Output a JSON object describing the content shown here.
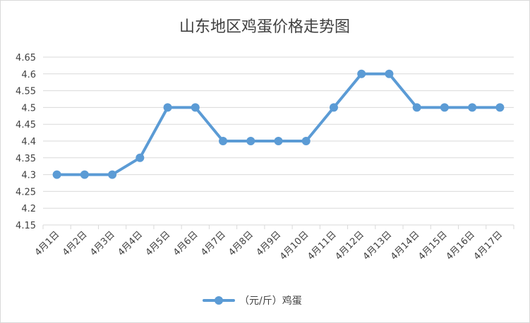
{
  "chart_data": {
    "type": "line",
    "title": "山东地区鸡蛋价格走势图",
    "xlabel": "",
    "ylabel": "",
    "categories": [
      "4月1日",
      "4月2日",
      "4月3日",
      "4月4日",
      "4月5日",
      "4月6日",
      "4月7日",
      "4月8日",
      "4月9日",
      "4月10日",
      "4月11日",
      "4月12日",
      "4月13日",
      "4月14日",
      "4月15日",
      "4月16日",
      "4月17日"
    ],
    "series": [
      {
        "name": "（元/斤）鸡蛋",
        "values": [
          4.3,
          4.3,
          4.3,
          4.35,
          4.5,
          4.5,
          4.4,
          4.4,
          4.4,
          4.4,
          4.5,
          4.6,
          4.6,
          4.5,
          4.5,
          4.5,
          4.5
        ]
      }
    ],
    "yticks": [
      "4.15",
      "4.2",
      "4.25",
      "4.3",
      "4.35",
      "4.4",
      "4.45",
      "4.5",
      "4.55",
      "4.6",
      "4.65"
    ],
    "ylim": [
      4.15,
      4.65
    ],
    "grid": true,
    "legend_position": "bottom",
    "series_color": "#5b9bd5",
    "grid_color": "#d9d9d9"
  }
}
